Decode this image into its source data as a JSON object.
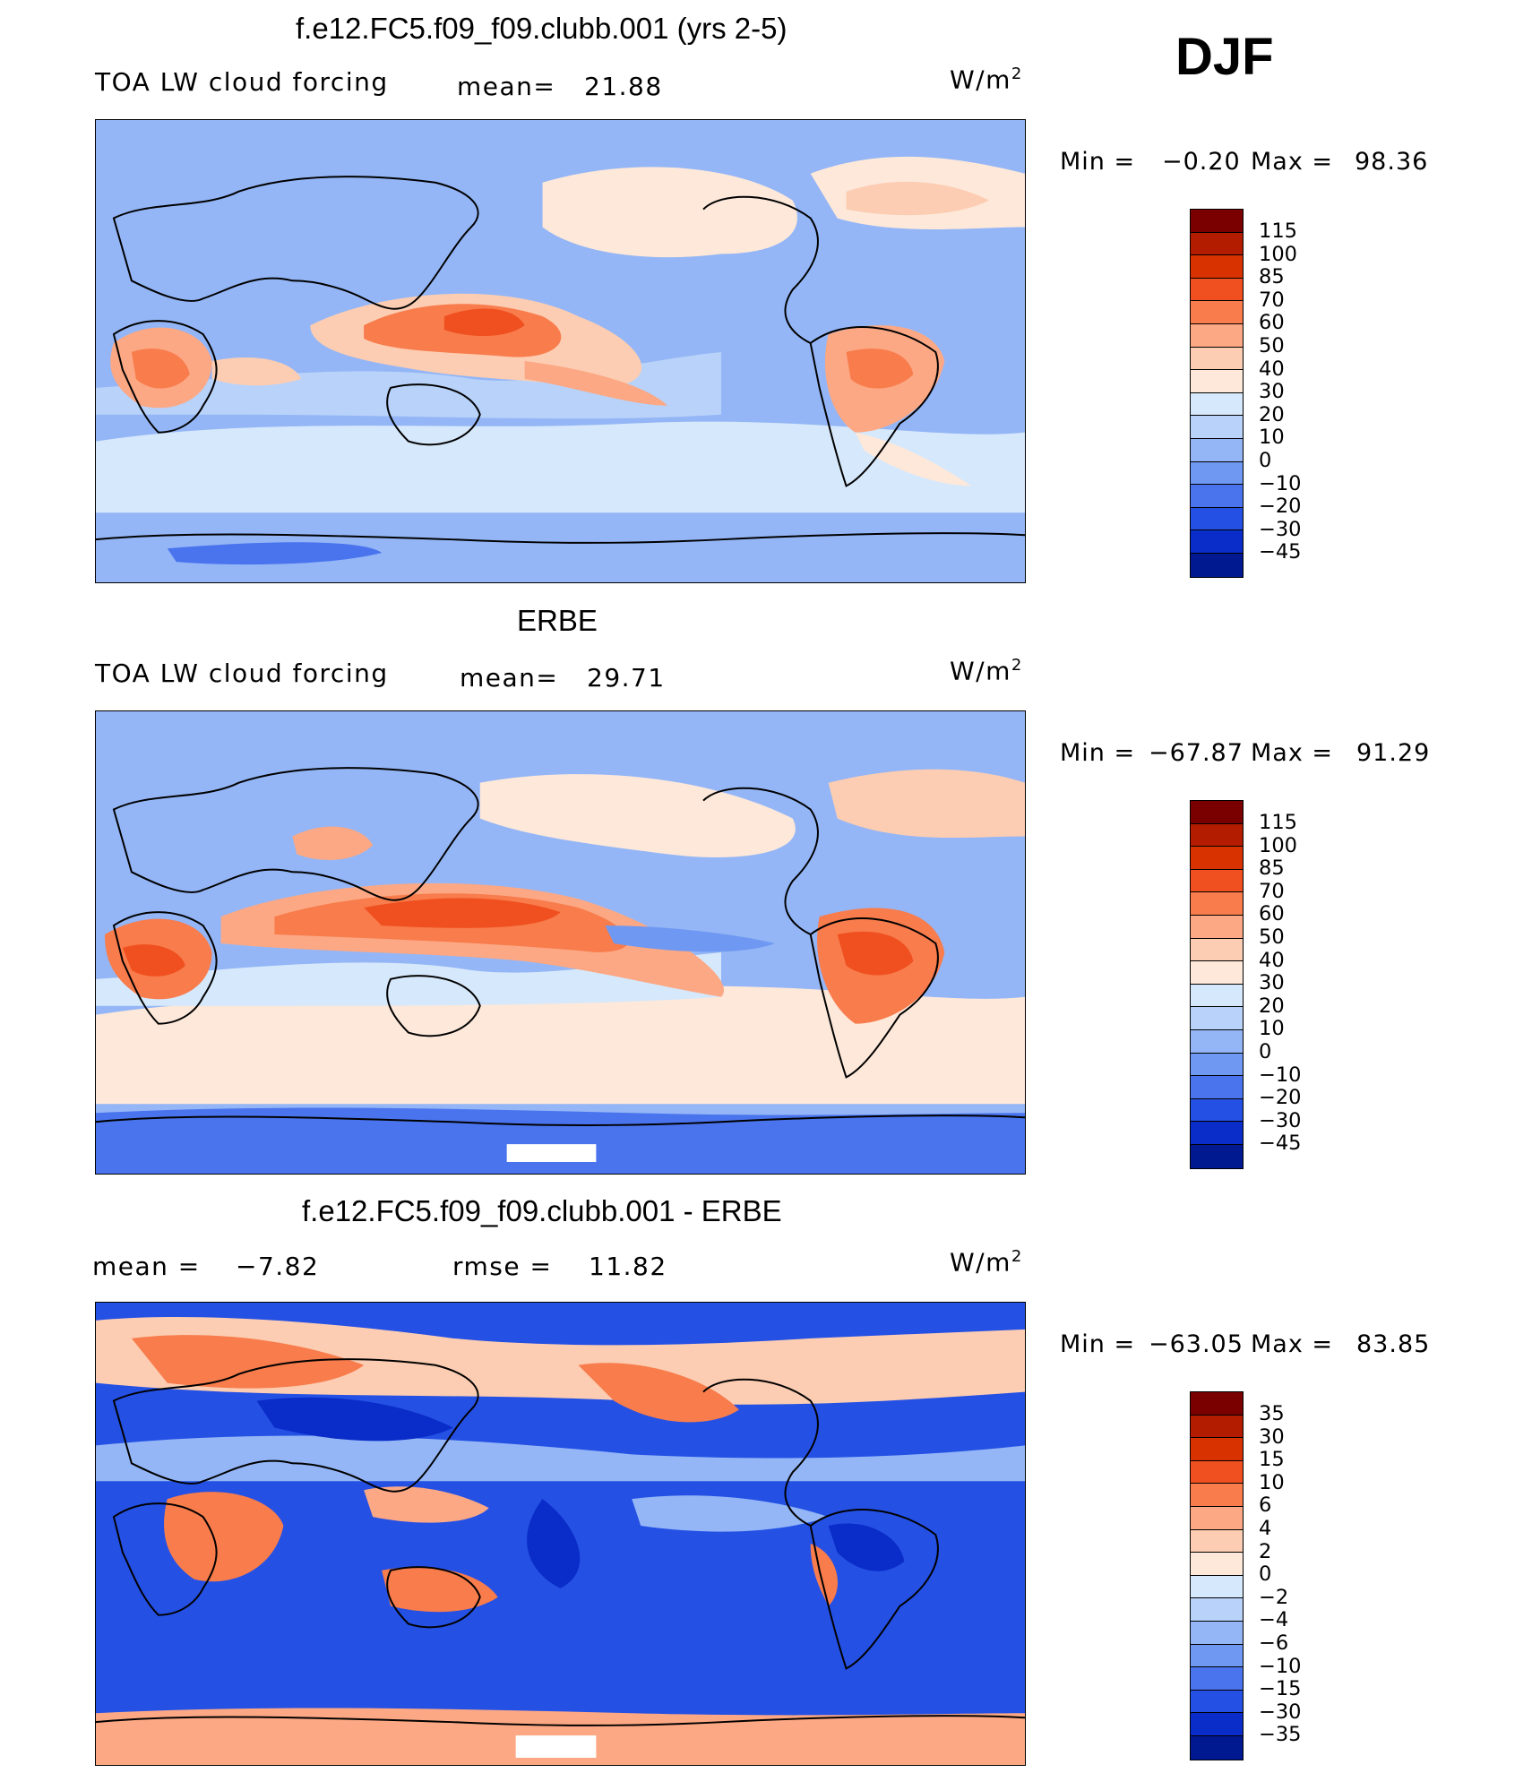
{
  "season": "DJF",
  "panels": [
    {
      "title": "f.e12.FC5.f09_f09.clubb.001 (yrs 2-5)",
      "variable": "TOA LW cloud forcing",
      "stat_label": "mean=",
      "stat_value": "21.88",
      "units": "W/m",
      "units_sup": "2",
      "min_label": "Min =",
      "min_value": "−0.20",
      "max_label": "Max =",
      "max_value": "98.36",
      "colorbar_labels": [
        "115",
        "100",
        "85",
        "70",
        "60",
        "50",
        "40",
        "30",
        "20",
        "10",
        "0",
        "−10",
        "−20",
        "−30",
        "−45"
      ]
    },
    {
      "title": "ERBE",
      "variable": "TOA LW cloud forcing",
      "stat_label": "mean=",
      "stat_value": "29.71",
      "units": "W/m",
      "units_sup": "2",
      "min_label": "Min =",
      "min_value": "−67.87",
      "max_label": "Max =",
      "max_value": "91.29",
      "colorbar_labels": [
        "115",
        "100",
        "85",
        "70",
        "60",
        "50",
        "40",
        "30",
        "20",
        "10",
        "0",
        "−10",
        "−20",
        "−30",
        "−45"
      ]
    },
    {
      "title": "f.e12.FC5.f09_f09.clubb.001 - ERBE",
      "mean_label": "mean =",
      "mean_value": "−7.82",
      "rmse_label": "rmse =",
      "rmse_value": "11.82",
      "units": "W/m",
      "units_sup": "2",
      "min_label": "Min =",
      "min_value": "−63.05",
      "max_label": "Max =",
      "max_value": "83.85",
      "colorbar_labels": [
        "35",
        "30",
        "15",
        "10",
        "6",
        "4",
        "2",
        "0",
        "−2",
        "−4",
        "−6",
        "−10",
        "−15",
        "−30",
        "−35"
      ]
    }
  ],
  "colorbar_colors": [
    "#7a0000",
    "#b41c00",
    "#d83200",
    "#f05020",
    "#f87c4c",
    "#fca884",
    "#fccdb2",
    "#fde8da",
    "#d6e8fb",
    "#b8d2fa",
    "#94b6f6",
    "#6e98f2",
    "#4a74ee",
    "#2450e4",
    "#0a2cc8",
    "#001890"
  ],
  "map_colors": {
    "deep_neg": "#0a2cc8",
    "neg": "#4a74ee",
    "mid_neg": "#6e98f2",
    "light_neg": "#94b6f6",
    "pale_neg": "#b8d2fa",
    "near_zero": "#d6e8fb",
    "pale_pos": "#fde8da",
    "light_pos": "#fccdb2",
    "mid_pos": "#fca884",
    "pos": "#f87c4c",
    "strong_pos": "#f05020",
    "deep_pos": "#d83200"
  }
}
